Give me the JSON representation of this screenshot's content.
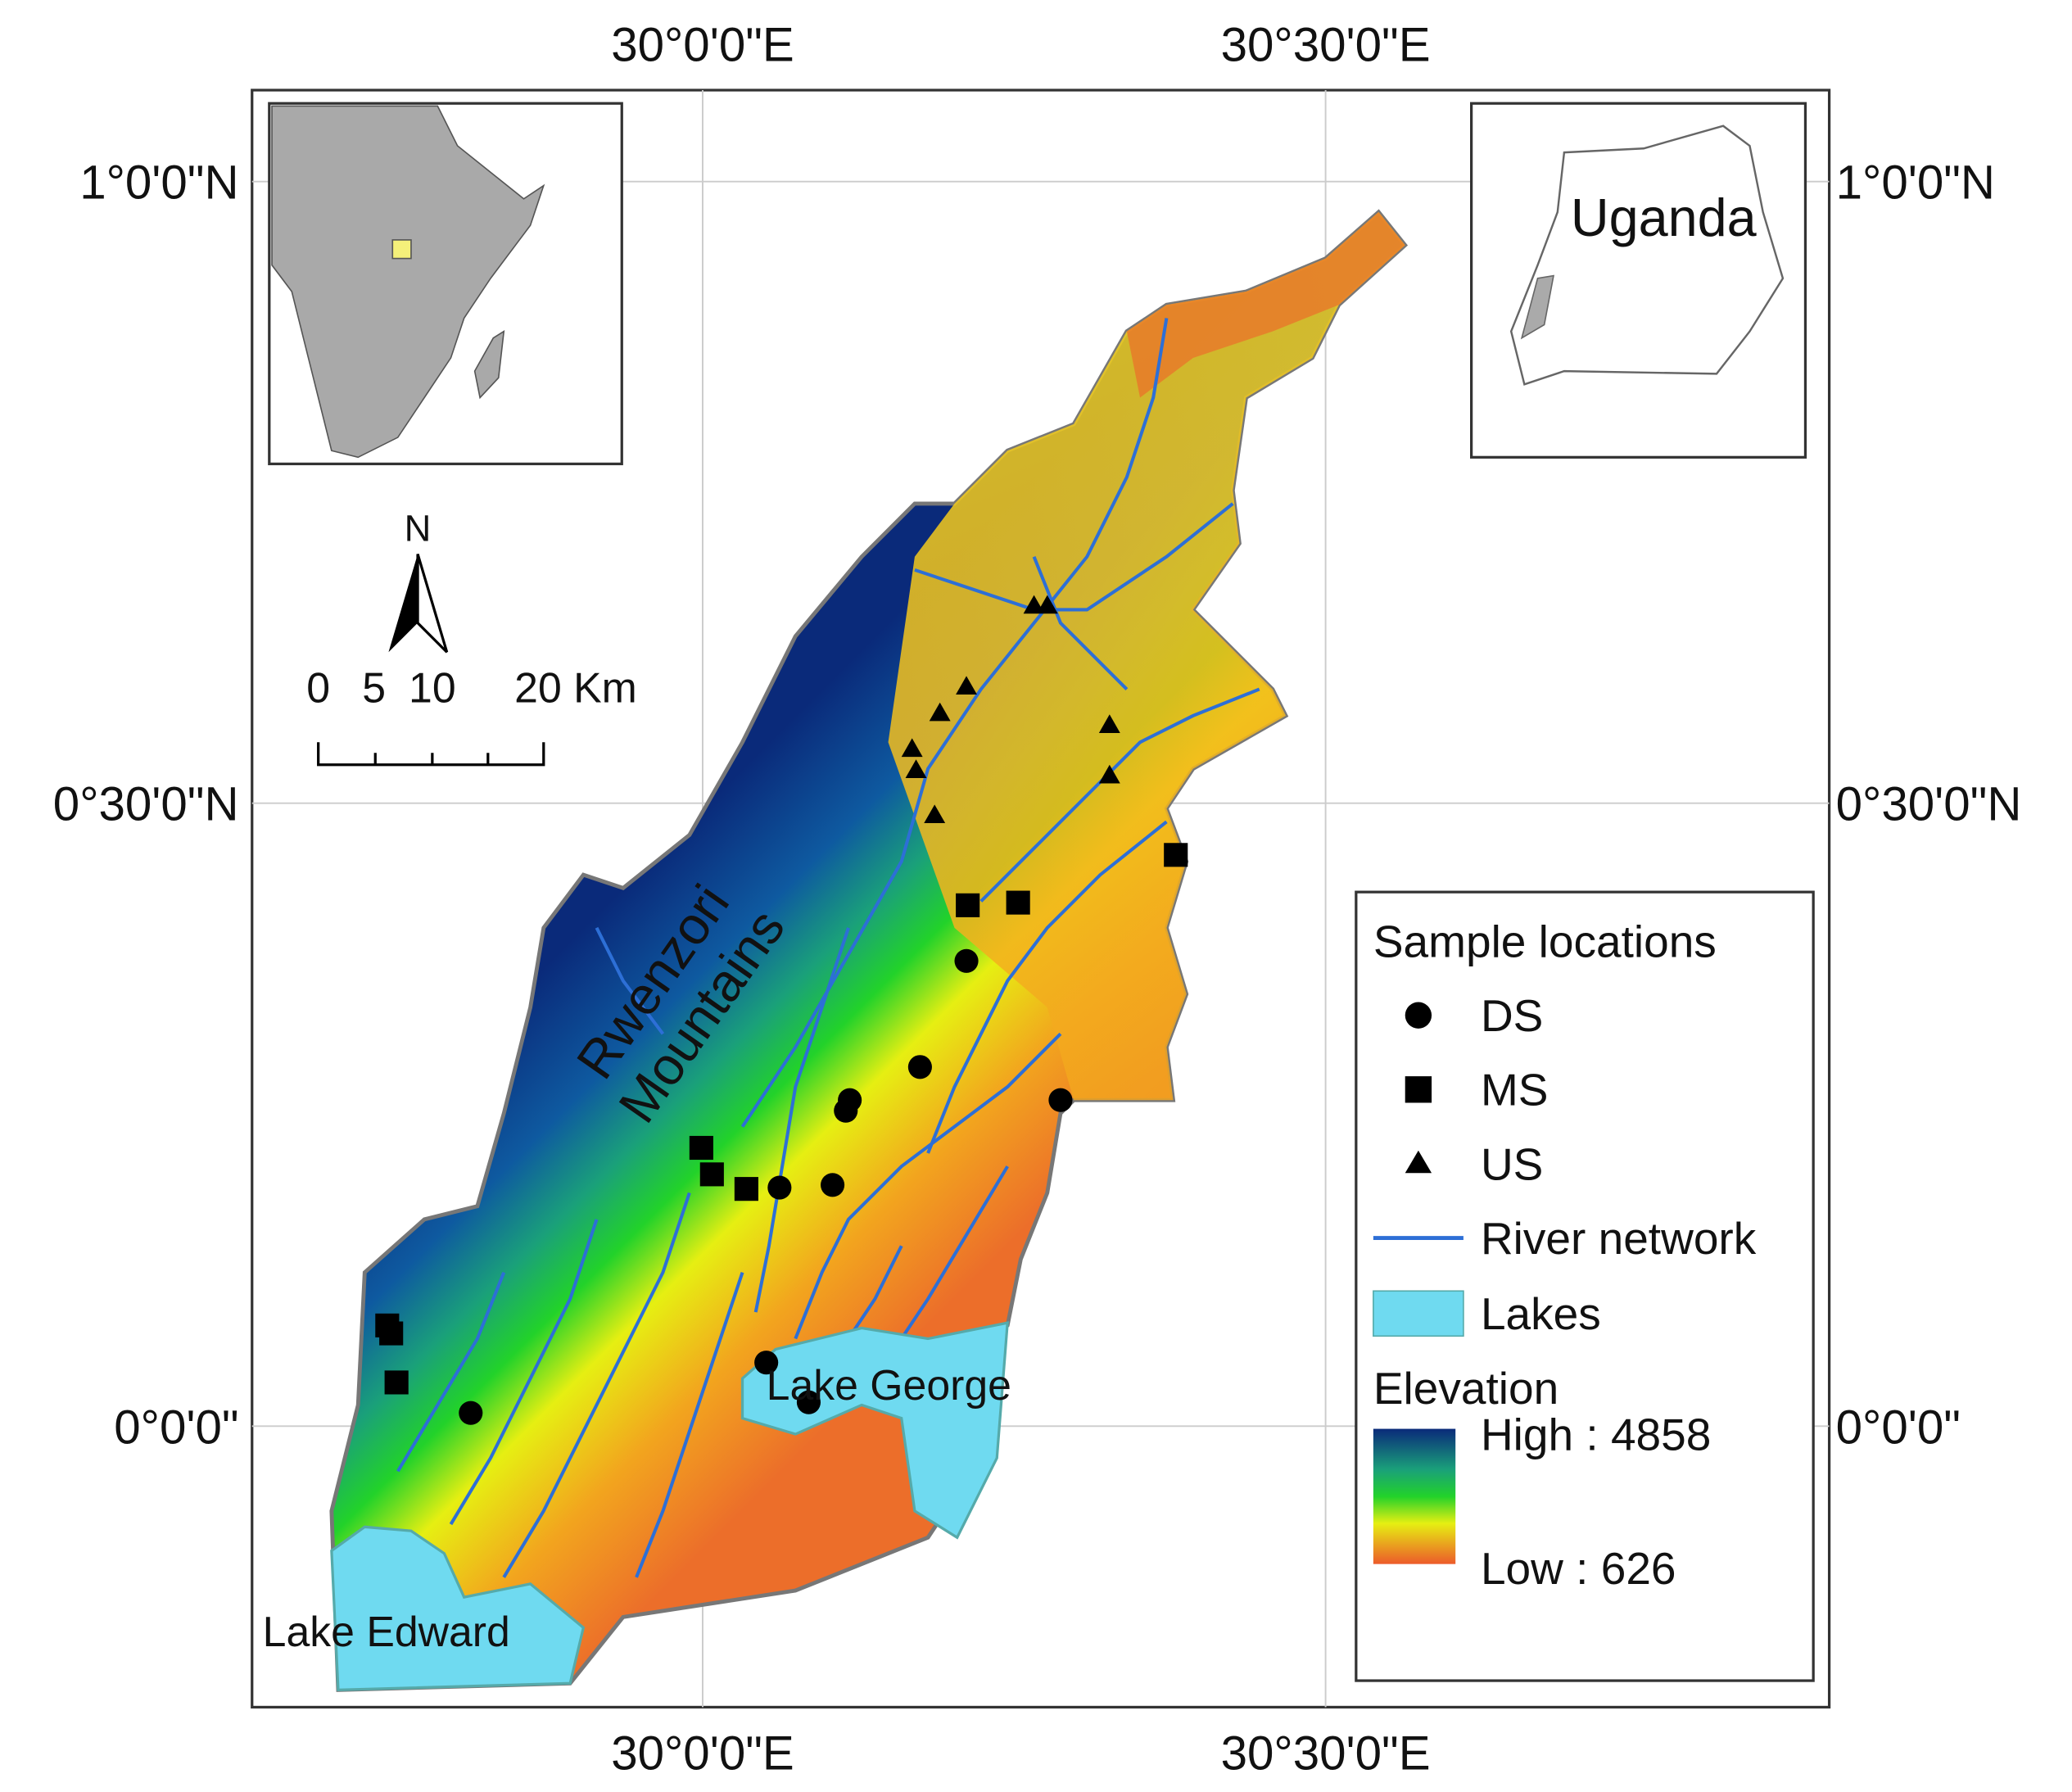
{
  "map": {
    "lon_labels": [
      "30°0'0\"E",
      "30°30'0\"E"
    ],
    "lat_labels": [
      "1°0'0\"N",
      "0°30'0\"N",
      "0°0'0\""
    ],
    "inset": {
      "label": "Uganda"
    },
    "north": "N",
    "scale": {
      "labels": [
        "0",
        "5",
        "10",
        "20 Km"
      ]
    },
    "legend": {
      "title": "Sample locations",
      "items": [
        "DS",
        "MS",
        "US",
        "River network",
        "Lakes"
      ],
      "elevation": {
        "title": "Elevation",
        "high": "High : 4858",
        "low": "Low : 626"
      }
    },
    "labels": {
      "mountains": [
        "Rwenzori",
        "Mountains"
      ],
      "lake_george": "Lake George",
      "lake_edward": "Lake Edward"
    }
  }
}
